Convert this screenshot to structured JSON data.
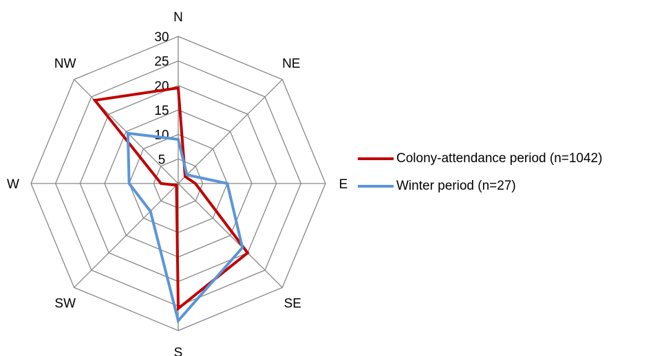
{
  "chart_data": {
    "type": "radar",
    "categories": [
      "N",
      "NE",
      "E",
      "SE",
      "S",
      "SW",
      "W",
      "NW"
    ],
    "rmax": 30,
    "ticks": [
      "5",
      "10",
      "15",
      "20",
      "25",
      "30"
    ],
    "tick_values": [
      5,
      10,
      15,
      20,
      25,
      30
    ],
    "series": [
      {
        "name": "Colony-attendance period (n=1042)",
        "color": "#C00000",
        "values": [
          19.5,
          2.0,
          3.5,
          20.0,
          25.5,
          0.5,
          3.5,
          24.0
        ]
      },
      {
        "name": "Winter period (n=27)",
        "color": "#5B95D9",
        "values": [
          9.0,
          2.5,
          10.0,
          18.5,
          28.0,
          8.0,
          10.0,
          14.5
        ]
      }
    ],
    "legend_position": "right"
  }
}
